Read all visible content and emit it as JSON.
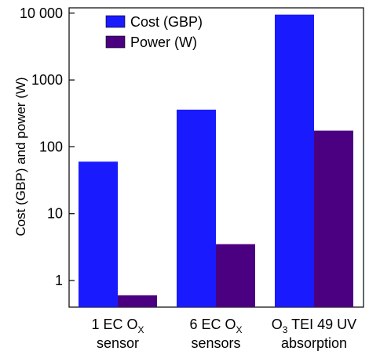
{
  "chart_data": {
    "type": "bar",
    "scale": "log",
    "ylabel": "Cost (GBP) and power (W)",
    "ylim": [
      0.4,
      12000
    ],
    "y_ticks": [
      {
        "value": 1,
        "label": "1"
      },
      {
        "value": 10,
        "label": "10"
      },
      {
        "value": 100,
        "label": "100"
      },
      {
        "value": 1000,
        "label": "1000"
      },
      {
        "value": 10000,
        "label": "10 000"
      }
    ],
    "categories": [
      {
        "line1_main": "1 EC O",
        "line1_sub": "X",
        "line1_tail": "",
        "line2": "sensor"
      },
      {
        "line1_main": "6 EC O",
        "line1_sub": "X",
        "line1_tail": "",
        "line2": "sensors"
      },
      {
        "line1_main": "O",
        "line1_sub": "3",
        "line1_tail": " TEI 49 UV",
        "line2": "absorption"
      }
    ],
    "series": [
      {
        "name": "Cost (GBP)",
        "color": "#1a1aff",
        "values": [
          60,
          360,
          9500
        ]
      },
      {
        "name": "Power (W)",
        "color": "#4b0082",
        "values": [
          0.6,
          3.5,
          175
        ]
      }
    ],
    "legend": {
      "position": "top-left"
    },
    "grid": false
  }
}
